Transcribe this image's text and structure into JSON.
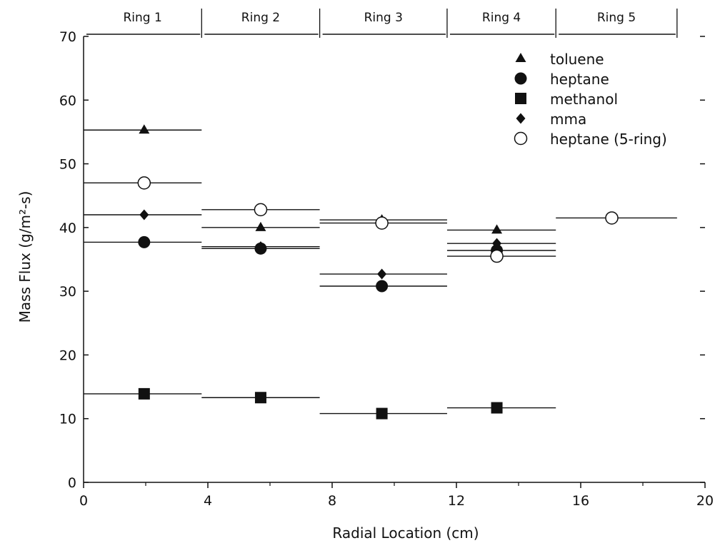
{
  "chart_data": {
    "type": "scatter",
    "xlabel": "Radial Location (cm)",
    "ylabel": "Mass Flux (g/m²-s)",
    "xlim": [
      0,
      20
    ],
    "ylim": [
      0,
      70
    ],
    "xticks": [
      "0",
      "4",
      "8",
      "12",
      "16",
      "20"
    ],
    "yticks": [
      "0",
      "10",
      "20",
      "30",
      "40",
      "50",
      "60",
      "70"
    ],
    "grid": false,
    "legend_position": "top-right",
    "rings": [
      {
        "label": "Ring 1",
        "x_start": 0,
        "x_end": 3.8
      },
      {
        "label": "Ring 2",
        "x_start": 3.8,
        "x_end": 7.6
      },
      {
        "label": "Ring 3",
        "x_start": 7.6,
        "x_end": 11.7
      },
      {
        "label": "Ring 4",
        "x_start": 11.7,
        "x_end": 15.2
      },
      {
        "label": "Ring 5",
        "x_start": 15.2,
        "x_end": 19.1
      }
    ],
    "series": [
      {
        "name": "toluene",
        "marker": "triangle",
        "points": [
          {
            "x": 1.95,
            "y": 55.3,
            "x_start": 0,
            "x_end": 3.8
          },
          {
            "x": 5.7,
            "y": 40.0,
            "x_start": 3.8,
            "x_end": 7.6
          },
          {
            "x": 9.6,
            "y": 41.2,
            "x_start": 7.6,
            "x_end": 11.7
          },
          {
            "x": 13.3,
            "y": 39.6,
            "x_start": 11.7,
            "x_end": 15.2
          }
        ]
      },
      {
        "name": "heptane",
        "marker": "circle",
        "points": [
          {
            "x": 1.95,
            "y": 37.7,
            "x_start": 0,
            "x_end": 3.8
          },
          {
            "x": 5.7,
            "y": 36.7,
            "x_start": 3.8,
            "x_end": 7.6
          },
          {
            "x": 9.6,
            "y": 30.8,
            "x_start": 7.6,
            "x_end": 11.7
          },
          {
            "x": 13.3,
            "y": 36.4,
            "x_start": 11.7,
            "x_end": 15.2
          }
        ]
      },
      {
        "name": "methanol",
        "marker": "square",
        "points": [
          {
            "x": 1.95,
            "y": 13.9,
            "x_start": 0,
            "x_end": 3.8
          },
          {
            "x": 5.7,
            "y": 13.3,
            "x_start": 3.8,
            "x_end": 7.6
          },
          {
            "x": 9.6,
            "y": 10.8,
            "x_start": 7.6,
            "x_end": 11.7
          },
          {
            "x": 13.3,
            "y": 11.7,
            "x_start": 11.7,
            "x_end": 15.2
          }
        ]
      },
      {
        "name": "mma",
        "marker": "diamond",
        "points": [
          {
            "x": 1.95,
            "y": 42.0,
            "x_start": 0,
            "x_end": 3.8
          },
          {
            "x": 5.7,
            "y": 37.0,
            "x_start": 3.8,
            "x_end": 7.6
          },
          {
            "x": 9.6,
            "y": 32.7,
            "x_start": 7.6,
            "x_end": 11.7
          },
          {
            "x": 13.3,
            "y": 37.5,
            "x_start": 11.7,
            "x_end": 15.2
          }
        ]
      },
      {
        "name": "heptane  (5-ring)",
        "marker": "open-circle",
        "points": [
          {
            "x": 1.95,
            "y": 47.0,
            "x_start": 0,
            "x_end": 3.8
          },
          {
            "x": 5.7,
            "y": 42.8,
            "x_start": 3.8,
            "x_end": 7.6
          },
          {
            "x": 9.6,
            "y": 40.7,
            "x_start": 7.6,
            "x_end": 11.7
          },
          {
            "x": 13.3,
            "y": 35.5,
            "x_start": 11.7,
            "x_end": 15.2
          },
          {
            "x": 17.0,
            "y": 41.5,
            "x_start": 15.2,
            "x_end": 19.1
          }
        ]
      }
    ]
  }
}
